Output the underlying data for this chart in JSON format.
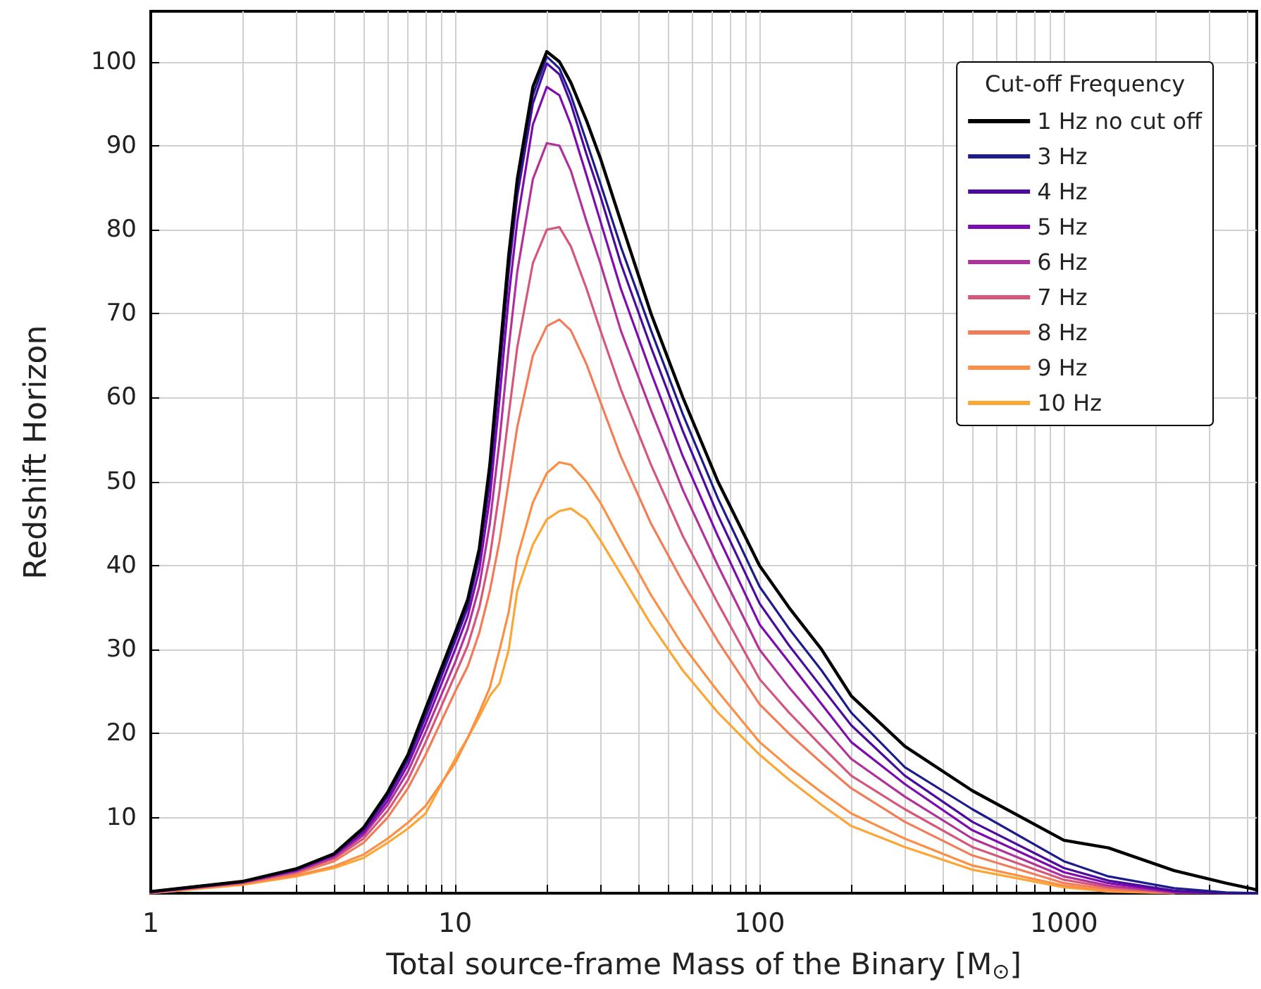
{
  "chart_data": {
    "type": "line",
    "xlabel": "Total source-frame Mass of the Binary [M$_{⊙}$]",
    "ylabel": "Redshift Horizon",
    "legend_title": "Cut-off Frequency",
    "legend": "top right",
    "grid": true,
    "log": "x",
    "marker": "none",
    "line_style": "solid",
    "xlim": [
      1,
      4300
    ],
    "ylim": [
      1,
      106
    ],
    "xticks": [
      1,
      {
        "value": 2,
        "label": null
      },
      {
        "value": 3,
        "label": null
      },
      {
        "value": 4,
        "label": null
      },
      {
        "value": 5,
        "label": null
      },
      {
        "value": 6,
        "label": null
      },
      {
        "value": 7,
        "label": null
      },
      {
        "value": 8,
        "label": null
      },
      {
        "value": 9,
        "label": null
      },
      10,
      {
        "value": 20,
        "label": null
      },
      {
        "value": 30,
        "label": null
      },
      {
        "value": 40,
        "label": null
      },
      {
        "value": 50,
        "label": null
      },
      {
        "value": 60,
        "label": null
      },
      {
        "value": 70,
        "label": null
      },
      {
        "value": 80,
        "label": null
      },
      {
        "value": 90,
        "label": null
      },
      100,
      {
        "value": 200,
        "label": null
      },
      {
        "value": 300,
        "label": null
      },
      {
        "value": 400,
        "label": null
      },
      {
        "value": 500,
        "label": null
      },
      {
        "value": 600,
        "label": null
      },
      {
        "value": 700,
        "label": null
      },
      {
        "value": 800,
        "label": null
      },
      {
        "value": 900,
        "label": null
      },
      1000,
      {
        "value": 2000,
        "label": null
      },
      {
        "value": 3000,
        "label": null
      },
      {
        "value": 4000,
        "label": null
      }
    ],
    "yticks": [
      10,
      20,
      30,
      40,
      50,
      60,
      70,
      80,
      90,
      100
    ],
    "x": [
      1,
      2,
      3,
      4,
      5,
      6,
      7,
      8,
      10,
      11,
      12,
      13,
      14,
      15,
      16,
      18,
      20,
      22,
      24,
      27,
      30,
      35,
      44,
      56,
      73,
      100,
      125,
      160,
      200,
      300,
      500,
      1000,
      1400,
      2300,
      3400,
      4300
    ],
    "series": [
      {
        "name": "1 Hz no cut off",
        "color": "#000000",
        "values": [
          1.2,
          2.4,
          3.9,
          5.7,
          8.8,
          13,
          17.5,
          23,
          32,
          36,
          42,
          52,
          65,
          77,
          86,
          97,
          101.2,
          100,
          97.5,
          93,
          88.5,
          81,
          70,
          60,
          50,
          40,
          35,
          30,
          24.5,
          18.5,
          13.2,
          7.3,
          6.4,
          3.7,
          2.2,
          1.4
        ]
      },
      {
        "name": "3 Hz",
        "color": "#1c1c8a",
        "values": [
          1.2,
          2.4,
          3.9,
          5.7,
          8.7,
          12.8,
          17.2,
          22.6,
          31.5,
          35.5,
          41.5,
          51,
          64,
          76,
          85,
          96,
          100.6,
          99.2,
          96,
          90.5,
          85.5,
          78,
          68,
          58,
          48,
          37.5,
          32.5,
          27.5,
          22.5,
          16,
          11,
          4.8,
          3,
          1.6,
          1.1,
          1
        ]
      },
      {
        "name": "4 Hz",
        "color": "#4b0c9e",
        "values": [
          1.2,
          2.4,
          3.8,
          5.6,
          8.5,
          12.5,
          16.9,
          22,
          31,
          35,
          41,
          50,
          63,
          75,
          84,
          95,
          99.8,
          98.5,
          95,
          89,
          84,
          76,
          66,
          56,
          46,
          35.5,
          30.5,
          25.5,
          21,
          15,
          9.5,
          4,
          2.5,
          1.3,
          1,
          1
        ]
      },
      {
        "name": "5 Hz",
        "color": "#7e0bad",
        "values": [
          1.1,
          2.3,
          3.7,
          5.5,
          8.2,
          12,
          16.3,
          21.2,
          30,
          34,
          39.5,
          48,
          60,
          72,
          81,
          92.5,
          97,
          96,
          92.5,
          86.5,
          81,
          73,
          63,
          53,
          43.5,
          33,
          28.5,
          23.5,
          19,
          14,
          8.5,
          3.5,
          2.2,
          1.2,
          1,
          1
        ]
      },
      {
        "name": "6 Hz",
        "color": "#b0329a",
        "values": [
          1.1,
          2.3,
          3.6,
          5.3,
          7.9,
          11.5,
          15.5,
          20.2,
          28.5,
          32.5,
          37.5,
          45,
          55,
          66,
          75,
          86,
          90.3,
          90,
          87,
          81,
          76,
          68,
          58.5,
          49,
          40,
          30,
          25.5,
          21,
          17,
          12.5,
          7.5,
          3,
          1.9,
          1.1,
          1,
          1
        ]
      },
      {
        "name": "7 Hz",
        "color": "#d5577a",
        "values": [
          1.1,
          2.2,
          3.5,
          5.1,
          7.5,
          10.8,
          14.5,
          19,
          27,
          30.5,
          35,
          41,
          49,
          58,
          66,
          76,
          80,
          80.3,
          78,
          73,
          68,
          61,
          52,
          43.5,
          35.5,
          26.5,
          22.5,
          18.5,
          15,
          11,
          6.5,
          2.6,
          1.7,
          1.1,
          1,
          null
        ]
      },
      {
        "name": "8 Hz",
        "color": "#f27c57",
        "values": [
          1.1,
          2.2,
          3.3,
          4.8,
          7,
          10,
          13.5,
          17.5,
          25,
          28,
          32,
          37,
          43,
          50,
          56.5,
          65,
          68.5,
          69.3,
          68,
          64,
          59.5,
          53,
          45,
          38,
          31,
          23.5,
          20,
          16.5,
          13.5,
          9.5,
          5.5,
          2.2,
          1.5,
          1,
          null,
          null
        ]
      },
      {
        "name": "9 Hz",
        "color": "#fa8f45",
        "values": [
          1,
          2.1,
          3.1,
          4.2,
          5.6,
          7.5,
          9.4,
          11.4,
          16.5,
          19.5,
          22.5,
          25.5,
          30,
          34.5,
          41,
          47.5,
          51,
          52.3,
          52,
          50,
          47.5,
          43,
          36.5,
          30.5,
          25,
          19,
          16,
          13,
          10.5,
          7.5,
          4.3,
          1.9,
          1.3,
          1,
          null,
          null
        ]
      },
      {
        "name": "10 Hz",
        "color": "#fca636",
        "values": [
          1,
          2,
          3,
          4,
          5.2,
          7,
          8.7,
          10.5,
          17,
          19.5,
          22,
          24.5,
          26,
          30,
          37,
          42.5,
          45.5,
          46.5,
          46.8,
          45.5,
          43,
          39,
          33,
          27.5,
          22.5,
          17.5,
          14.5,
          11.5,
          9,
          6.5,
          3.8,
          1.7,
          1.2,
          1,
          null,
          null
        ]
      }
    ]
  }
}
